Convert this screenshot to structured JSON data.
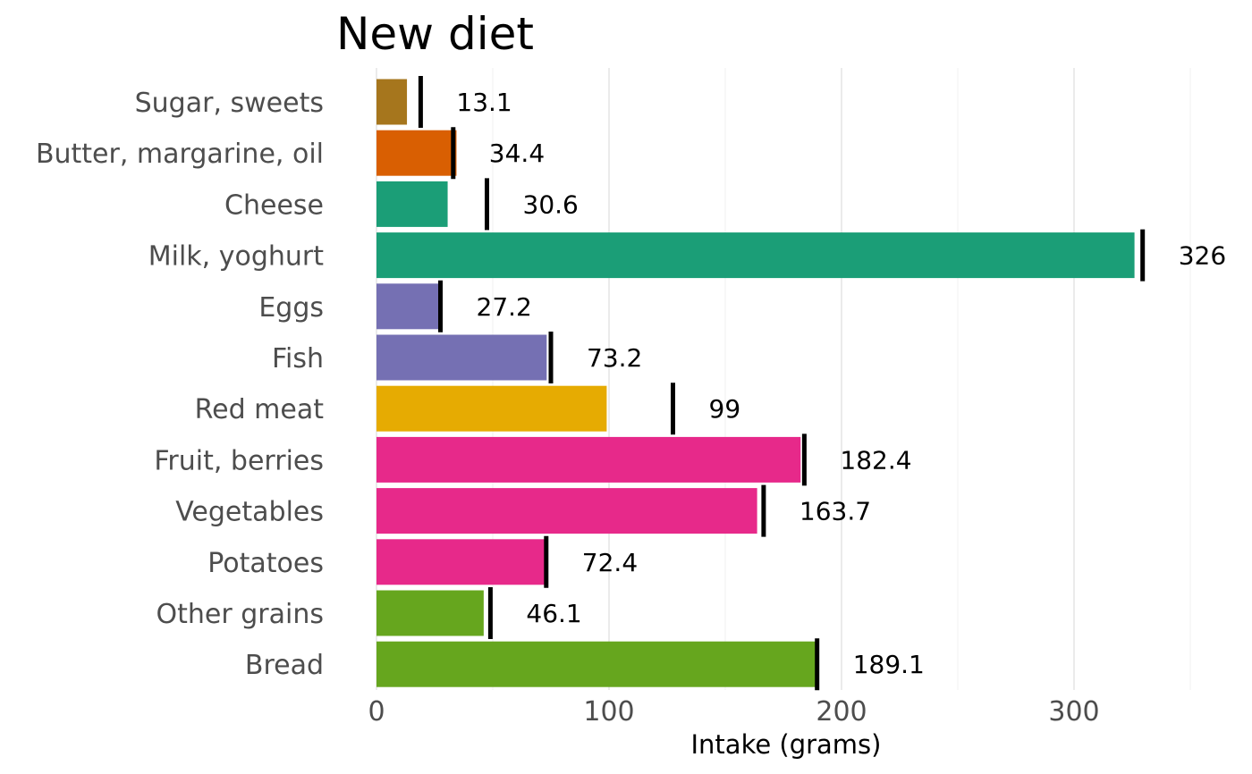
{
  "chart_data": {
    "type": "bar",
    "orientation": "horizontal",
    "title": "New diet",
    "xlabel": "Intake (grams)",
    "ylabel": "",
    "xlim": [
      0,
      360
    ],
    "x_ticks": [
      0,
      100,
      200,
      300
    ],
    "x_tick_labels": [
      "0",
      "100",
      "200",
      "300"
    ],
    "grid": true,
    "legend": "none",
    "categories": [
      "Sugar, sweets",
      "Butter, margarine, oil",
      "Cheese",
      "Milk, yoghurt",
      "Eggs",
      "Fish",
      "Red meat",
      "Fruit, berries",
      "Vegetables",
      "Potatoes",
      "Other grains",
      "Bread"
    ],
    "values": [
      13.1,
      34.4,
      30.6,
      326,
      27.2,
      73.2,
      99,
      182.4,
      163.7,
      72.4,
      46.1,
      189.1
    ],
    "value_labels": [
      "13.1",
      "34.4",
      "30.6",
      "326",
      "27.2",
      "73.2",
      "99",
      "182.4",
      "163.7",
      "72.4",
      "46.1",
      "189.1"
    ],
    "reference_marks": [
      19,
      33,
      47.5,
      329.5,
      27.5,
      75,
      127.5,
      184,
      166.5,
      73,
      49,
      189.5
    ],
    "colors": [
      "#a6761d",
      "#d95f02",
      "#1b9e77",
      "#1b9e77",
      "#7570b3",
      "#7570b3",
      "#e6ab02",
      "#e7298a",
      "#e7298a",
      "#e7298a",
      "#66a61e",
      "#66a61e"
    ]
  }
}
